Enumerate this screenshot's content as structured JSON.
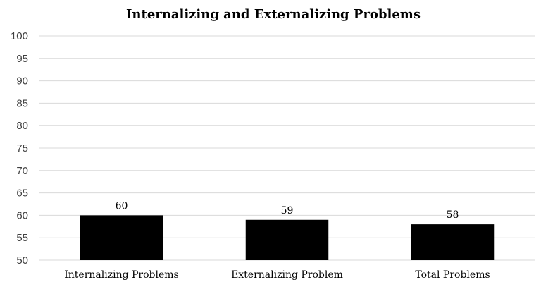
{
  "chart_data": {
    "type": "bar",
    "title": "Internalizing and Externalizing Problems",
    "categories": [
      "Internalizing Problems",
      "Externalizing Problem",
      "Total Problems"
    ],
    "values": [
      60,
      59,
      58
    ],
    "data_labels": [
      "60",
      "59",
      "58"
    ],
    "y_ticks": [
      "50",
      "55",
      "60",
      "65",
      "70",
      "75",
      "80",
      "85",
      "90",
      "95",
      "100"
    ],
    "ylim": [
      50,
      100
    ],
    "xlabel": "",
    "ylabel": "",
    "grid": true,
    "legend": "none",
    "bar_color": "#000000"
  }
}
